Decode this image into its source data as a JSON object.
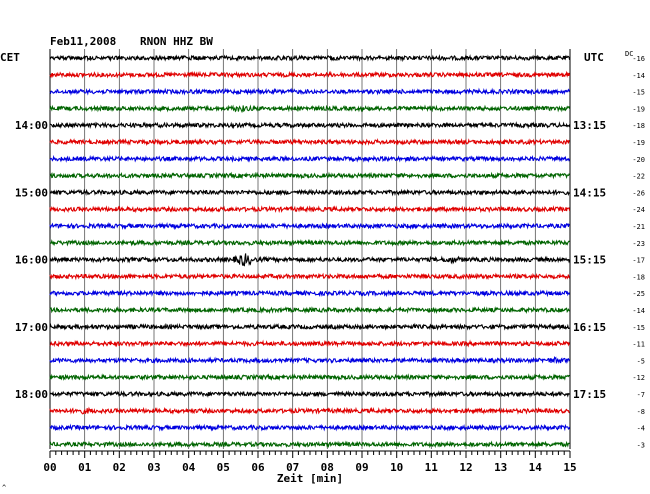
{
  "header": {
    "date": "Feb11,2008",
    "station": "RNON HHZ BW",
    "left_zone": "CET",
    "right_zone": "UTC",
    "dc_label": "DC"
  },
  "footer": {
    "xlabel": "Zeit [min]",
    "corner_mark": "^"
  },
  "chart_data": {
    "type": "line",
    "title": "Feb11,2008 RNON HHZ BW",
    "xlabel": "Zeit [min]",
    "xlim": [
      0,
      15
    ],
    "x_ticks": [
      "00",
      "01",
      "02",
      "03",
      "04",
      "05",
      "06",
      "07",
      "08",
      "09",
      "10",
      "11",
      "12",
      "13",
      "14",
      "15"
    ],
    "grid": true,
    "trace_colors": [
      "#000000",
      "#e00000",
      "#0000e0",
      "#006400"
    ],
    "left_hour_labels": [
      {
        "trace": 4,
        "label": "14:00"
      },
      {
        "trace": 8,
        "label": "15:00"
      },
      {
        "trace": 12,
        "label": "16:00"
      },
      {
        "trace": 16,
        "label": "17:00"
      },
      {
        "trace": 20,
        "label": "18:00"
      }
    ],
    "right_hour_labels": [
      {
        "trace": 4,
        "label": "13:15"
      },
      {
        "trace": 8,
        "label": "14:15"
      },
      {
        "trace": 12,
        "label": "15:15"
      },
      {
        "trace": 16,
        "label": "16:15"
      },
      {
        "trace": 20,
        "label": "17:15"
      }
    ],
    "dc_offsets": [
      -16,
      -14,
      -15,
      -19,
      -18,
      -19,
      -20,
      -22,
      -26,
      -24,
      -21,
      -23,
      -17,
      -18,
      -25,
      -14,
      -15,
      -11,
      -5,
      -12,
      -7,
      -8,
      -4,
      -3
    ],
    "events": [
      {
        "trace": 3,
        "minute": 5.5,
        "scale": 1.8
      },
      {
        "trace": 12,
        "minute": 5.6,
        "scale": 3.5
      },
      {
        "trace": 12,
        "minute": 11.6,
        "scale": 1.8
      },
      {
        "trace": 21,
        "minute": 1.0,
        "scale": 1.6
      },
      {
        "trace": 18,
        "minute": 14.6,
        "scale": 1.6
      }
    ]
  }
}
